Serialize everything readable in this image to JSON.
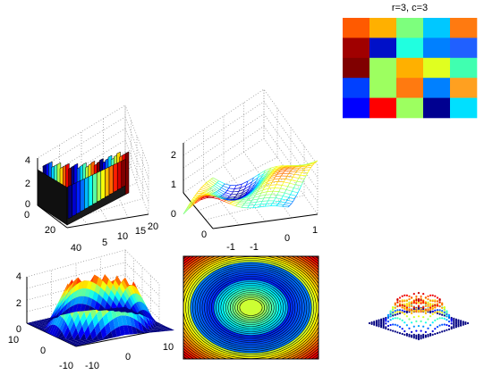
{
  "figure": {
    "background": "#ffffff",
    "axes_color": "#000000",
    "grid_color": "#9a9a9a"
  },
  "chart_data": [
    {
      "id": "heatmap",
      "type": "heatmap",
      "title": "r=3, c=3",
      "rows": 5,
      "cols": 5,
      "cells": [
        [
          "#ff5a00",
          "#ffb000",
          "#7dff7d",
          "#00c8ff",
          "#ff7a10"
        ],
        [
          "#a00000",
          "#0010c8",
          "#20ffe0",
          "#0080ff",
          "#2060ff"
        ],
        [
          "#800000",
          "#9dff60",
          "#ffb000",
          "#e0ff20",
          "#40ffb0"
        ],
        [
          "#0040ff",
          "#9dff60",
          "#ff7a10",
          "#0080ff",
          "#ffa020"
        ],
        [
          "#0000ff",
          "#ff0000",
          "#9dff60",
          "#000090",
          "#00e0ff"
        ]
      ]
    },
    {
      "id": "bar3",
      "type": "bar",
      "title": "",
      "zticks": [
        "0",
        "2",
        "4"
      ],
      "xticks": [
        "0",
        "20",
        "40"
      ],
      "yticks": [
        "5",
        "10",
        "15",
        "20"
      ]
    },
    {
      "id": "mesh",
      "type": "area",
      "title": "",
      "zticks": [
        "0",
        "1",
        "2"
      ],
      "xticks": [
        "0",
        "-1"
      ],
      "yticks": [
        "-1",
        "0",
        "1"
      ]
    },
    {
      "id": "surf",
      "type": "area",
      "title": "",
      "zticks": [
        "0",
        "2",
        "4"
      ],
      "xticks": [
        "10",
        "0",
        "-10"
      ],
      "yticks": [
        "-10",
        "0",
        "10"
      ]
    },
    {
      "id": "contour",
      "type": "heatmap",
      "title": "",
      "levels": 40
    },
    {
      "id": "scatter3",
      "type": "scatter",
      "title": ""
    }
  ]
}
